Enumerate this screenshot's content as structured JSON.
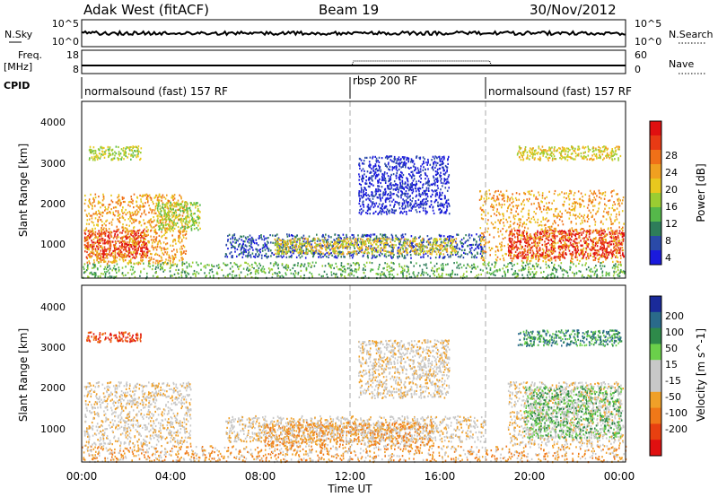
{
  "header": {
    "station": "Adak West (fitACF)",
    "beam": "Beam 19",
    "date": "30/Nov/2012"
  },
  "nsky_panel": {
    "left_label": "N.Sky",
    "right_label": "N.Search",
    "left_ticks": [
      "10^5",
      "10^0"
    ],
    "right_ticks": [
      "10^5",
      "10^0"
    ]
  },
  "freq_panel": {
    "left_label": "Freq.",
    "left_unit": "[MHz]",
    "right_label": "Nave",
    "left_ticks": [
      "18",
      "8"
    ],
    "right_ticks": [
      "60",
      "0"
    ]
  },
  "cpid": {
    "label": "CPID",
    "segments": [
      {
        "name": "normalsound (fast) 157 RF",
        "start_hour": 0,
        "end_hour": 12
      },
      {
        "name": "rbsp 200 RF",
        "start_hour": 12,
        "end_hour": 18
      },
      {
        "name": "normalsound (fast) 157 RF",
        "start_hour": 18,
        "end_hour": 24
      }
    ]
  },
  "colors": {
    "power_scale": [
      "#1a1adc",
      "#2a4aa8",
      "#2e7d5a",
      "#55b84a",
      "#9acd32",
      "#e8c81e",
      "#f0a020",
      "#f07018",
      "#e83a14",
      "#e01010"
    ],
    "velocity_scale": [
      "#1a2a9a",
      "#2a6a8a",
      "#2e8a4a",
      "#6ad04a",
      "#c8c8c8",
      "#c8c8c8",
      "#f0a028",
      "#f07818",
      "#e84010",
      "#e01010"
    ]
  },
  "chart_data": [
    {
      "type": "heatmap",
      "title": "",
      "xlabel": "",
      "ylabel": "Slant Range [km]",
      "xlim": [
        0,
        24
      ],
      "ylim": [
        180,
        4600
      ],
      "y_ticks": [
        "1000",
        "2000",
        "3000",
        "4000"
      ],
      "colorbar_label": "Power [dB]",
      "colorbar_ticks": [
        "28",
        "24",
        "20",
        "16",
        "12",
        "8",
        "4"
      ],
      "regions": [
        {
          "x": [
            0.1,
            2.9
          ],
          "y": [
            700,
            1400
          ],
          "level": 9
        },
        {
          "x": [
            0.1,
            4.6
          ],
          "y": [
            550,
            2300
          ],
          "level": 6
        },
        {
          "x": [
            3.3,
            5.2
          ],
          "y": [
            1400,
            2100
          ],
          "level": 4
        },
        {
          "x": [
            0.3,
            2.6
          ],
          "y": [
            3150,
            3500
          ],
          "level": 4
        },
        {
          "x": [
            6.3,
            17.8
          ],
          "y": [
            700,
            1300
          ],
          "level": 1
        },
        {
          "x": [
            8.5,
            16.5
          ],
          "y": [
            800,
            1200
          ],
          "level": 5
        },
        {
          "x": [
            12.2,
            16.2
          ],
          "y": [
            1800,
            3250
          ],
          "level": 0
        },
        {
          "x": [
            18.8,
            23.9
          ],
          "y": [
            700,
            1400
          ],
          "level": 9
        },
        {
          "x": [
            17.5,
            23.9
          ],
          "y": [
            600,
            2400
          ],
          "level": 6
        },
        {
          "x": [
            19.2,
            23.8
          ],
          "y": [
            3150,
            3500
          ],
          "level": 5
        },
        {
          "x": [
            0,
            24
          ],
          "y": [
            200,
            600
          ],
          "level": 3
        }
      ]
    },
    {
      "type": "heatmap",
      "title": "",
      "xlabel": "Time UT",
      "ylabel": "Slant Range [km]",
      "xlim": [
        0,
        24
      ],
      "ylim": [
        180,
        4600
      ],
      "x_ticks": [
        "00:00",
        "04:00",
        "08:00",
        "12:00",
        "16:00",
        "20:00",
        "00:00"
      ],
      "y_ticks": [
        "1000",
        "2000",
        "3000",
        "4000"
      ],
      "colorbar_label": "Velocity [m s^-1]",
      "colorbar_ticks": [
        "200",
        "100",
        "50",
        "15",
        "-15",
        "-50",
        "-100",
        "-200"
      ],
      "regions": [
        {
          "x": [
            0.1,
            4.8
          ],
          "y": [
            600,
            2200
          ],
          "level": 5
        },
        {
          "x": [
            0.2,
            2.6
          ],
          "y": [
            3200,
            3450
          ],
          "level": 8
        },
        {
          "x": [
            6.3,
            17.8
          ],
          "y": [
            700,
            1350
          ],
          "level": 5
        },
        {
          "x": [
            8.0,
            15.5
          ],
          "y": [
            600,
            1200
          ],
          "level": 6
        },
        {
          "x": [
            12.2,
            16.2
          ],
          "y": [
            1800,
            3250
          ],
          "level": 5
        },
        {
          "x": [
            18.8,
            23.9
          ],
          "y": [
            600,
            2200
          ],
          "level": 5
        },
        {
          "x": [
            19.5,
            23.8
          ],
          "y": [
            800,
            2100
          ],
          "level": 3
        },
        {
          "x": [
            19.2,
            23.8
          ],
          "y": [
            3100,
            3500
          ],
          "level": 2
        },
        {
          "x": [
            0,
            24
          ],
          "y": [
            200,
            600
          ],
          "level": 6
        }
      ]
    }
  ],
  "vertical_markers_hour": [
    12,
    18
  ]
}
